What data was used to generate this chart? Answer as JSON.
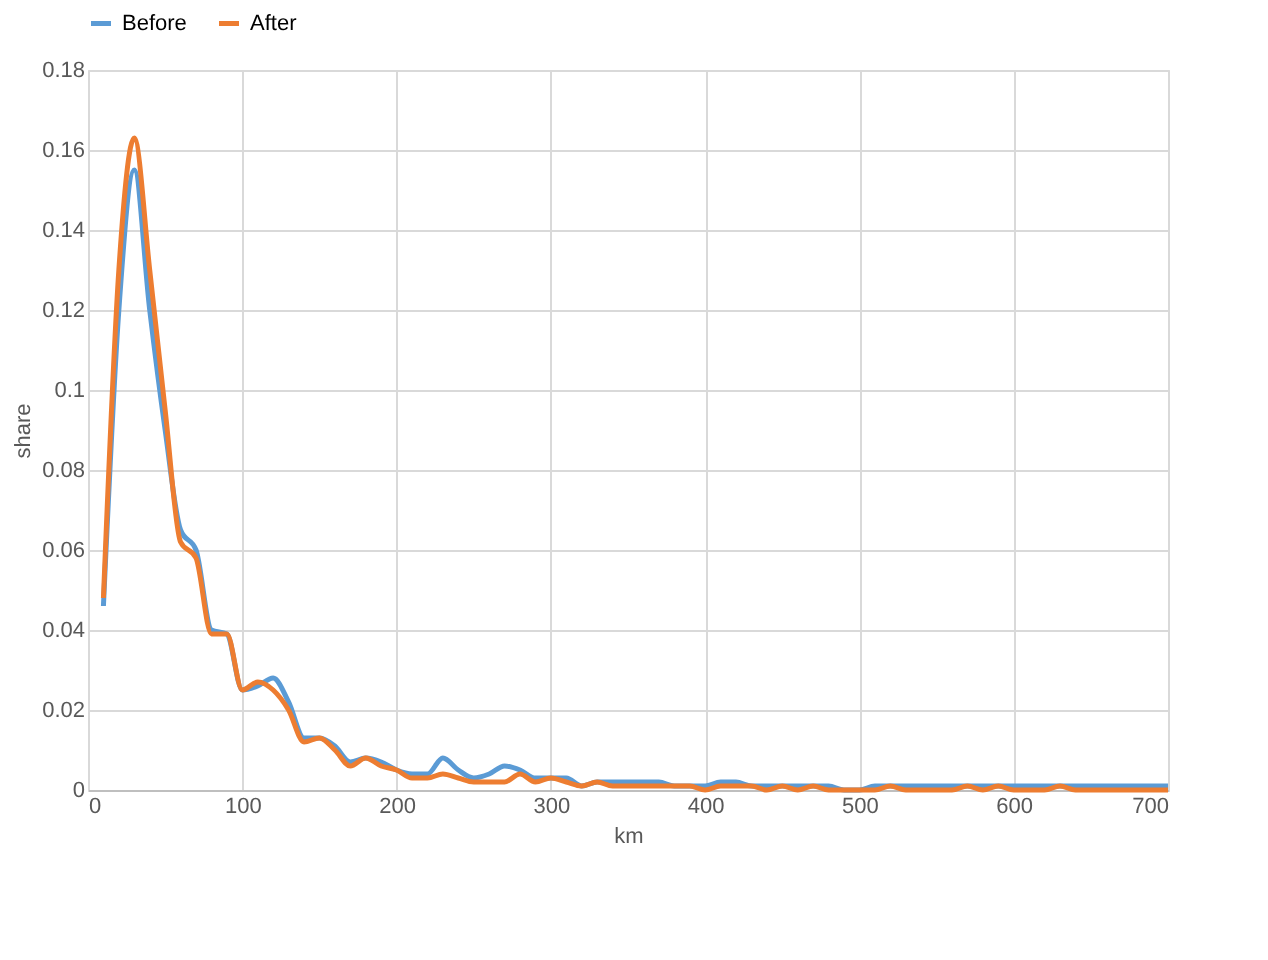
{
  "chart_data": {
    "type": "line",
    "xlabel": "km",
    "ylabel": "share",
    "x": [
      10,
      20,
      30,
      40,
      50,
      60,
      70,
      80,
      90,
      100,
      110,
      120,
      130,
      140,
      150,
      160,
      170,
      180,
      190,
      200,
      210,
      220,
      230,
      240,
      250,
      260,
      270,
      280,
      290,
      300,
      310,
      320,
      330,
      340,
      350,
      360,
      370,
      380,
      390,
      400,
      410,
      420,
      430,
      440,
      450,
      460,
      470,
      480,
      490,
      500,
      510,
      520,
      530,
      540,
      550,
      560,
      570,
      580,
      590,
      600,
      610,
      620,
      630,
      640,
      650,
      660,
      670,
      680,
      690,
      700
    ],
    "series": [
      {
        "name": "Before",
        "color": "#5b9bd5",
        "values": [
          0.046,
          0.12,
          0.155,
          0.12,
          0.09,
          0.065,
          0.06,
          0.04,
          0.039,
          0.025,
          0.026,
          0.028,
          0.022,
          0.013,
          0.013,
          0.011,
          0.007,
          0.008,
          0.007,
          0.005,
          0.004,
          0.004,
          0.008,
          0.005,
          0.003,
          0.004,
          0.006,
          0.005,
          0.003,
          0.003,
          0.003,
          0.001,
          0.002,
          0.002,
          0.002,
          0.002,
          0.002,
          0.001,
          0.001,
          0.001,
          0.002,
          0.002,
          0.001,
          0.001,
          0.001,
          0.001,
          0.001,
          0.001,
          0.0,
          0.0,
          0.001,
          0.001,
          0.001,
          0.001,
          0.001,
          0.001,
          0.001,
          0.001,
          0.001,
          0.001,
          0.001,
          0.001,
          0.001,
          0.001,
          0.001,
          0.001,
          0.001,
          0.001,
          0.001,
          0.001
        ]
      },
      {
        "name": "After",
        "color": "#ed7d31",
        "values": [
          0.048,
          0.13,
          0.163,
          0.13,
          0.095,
          0.062,
          0.058,
          0.039,
          0.039,
          0.025,
          0.027,
          0.025,
          0.02,
          0.012,
          0.013,
          0.01,
          0.006,
          0.008,
          0.006,
          0.005,
          0.003,
          0.003,
          0.004,
          0.003,
          0.002,
          0.002,
          0.002,
          0.004,
          0.002,
          0.003,
          0.002,
          0.001,
          0.002,
          0.001,
          0.001,
          0.001,
          0.001,
          0.001,
          0.001,
          0.0,
          0.001,
          0.001,
          0.001,
          0.0,
          0.001,
          0.0,
          0.001,
          0.0,
          0.0,
          0.0,
          0.0,
          0.001,
          0.0,
          0.0,
          0.0,
          0.0,
          0.001,
          0.0,
          0.001,
          0.0,
          0.0,
          0.0,
          0.001,
          0.0,
          0.0,
          0.0,
          0.0,
          0.0,
          0.0,
          0.0
        ]
      }
    ],
    "xlim": [
      0,
      700
    ],
    "xticks": [
      0,
      100,
      200,
      300,
      400,
      500,
      600,
      700
    ],
    "ylim": [
      0,
      0.18
    ],
    "yticks": [
      0,
      0.02,
      0.04,
      0.06,
      0.08,
      0.1,
      0.12,
      0.14,
      0.16,
      0.18
    ],
    "grid": true,
    "legend": "top",
    "line_style": "solid",
    "marker": "none"
  }
}
